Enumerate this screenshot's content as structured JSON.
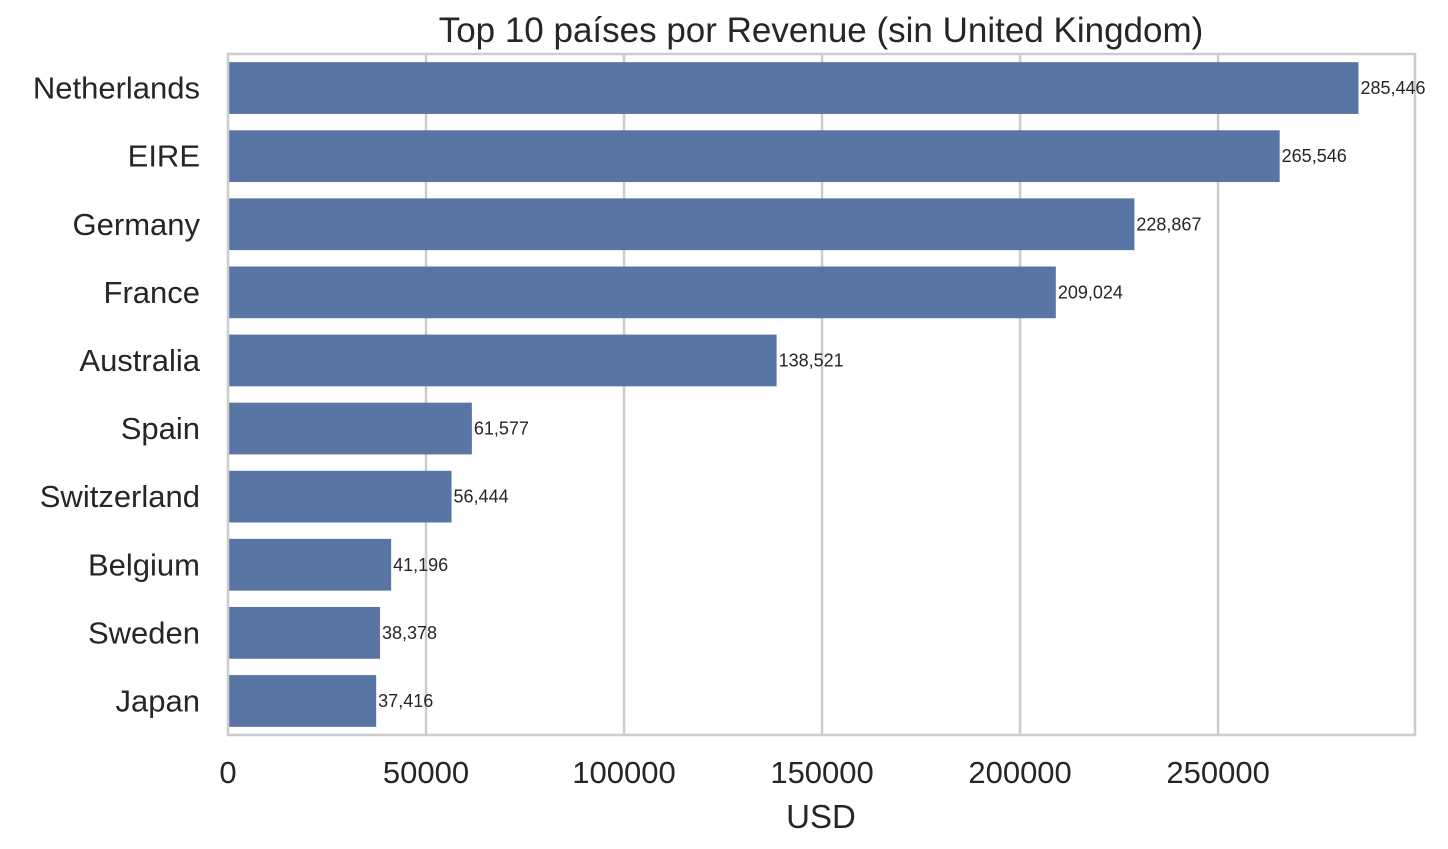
{
  "chart_data": {
    "type": "bar",
    "orientation": "horizontal",
    "title": "Top 10 países por Revenue (sin United Kingdom)",
    "xlabel": "USD",
    "ylabel": "",
    "categories": [
      "Netherlands",
      "EIRE",
      "Germany",
      "France",
      "Australia",
      "Spain",
      "Switzerland",
      "Belgium",
      "Sweden",
      "Japan"
    ],
    "values": [
      285446,
      265546,
      228867,
      209024,
      138521,
      61577,
      56444,
      41196,
      38378,
      37416
    ],
    "value_labels": [
      "285,446",
      "265,546",
      "228,867",
      "209,024",
      "138,521",
      "61,577",
      "56,444",
      "41,196",
      "38,378",
      "37,416"
    ],
    "xticks": [
      0,
      50000,
      100000,
      150000,
      200000,
      250000
    ],
    "xtick_labels": [
      "0",
      "50000",
      "100000",
      "150000",
      "200000",
      "250000"
    ],
    "xlim": [
      0,
      299718
    ],
    "grid": "vertical",
    "legend": "none",
    "colors": {
      "bar": "#5975a4",
      "grid": "#cccccc",
      "text": "#262626",
      "background": "#ffffff"
    }
  }
}
